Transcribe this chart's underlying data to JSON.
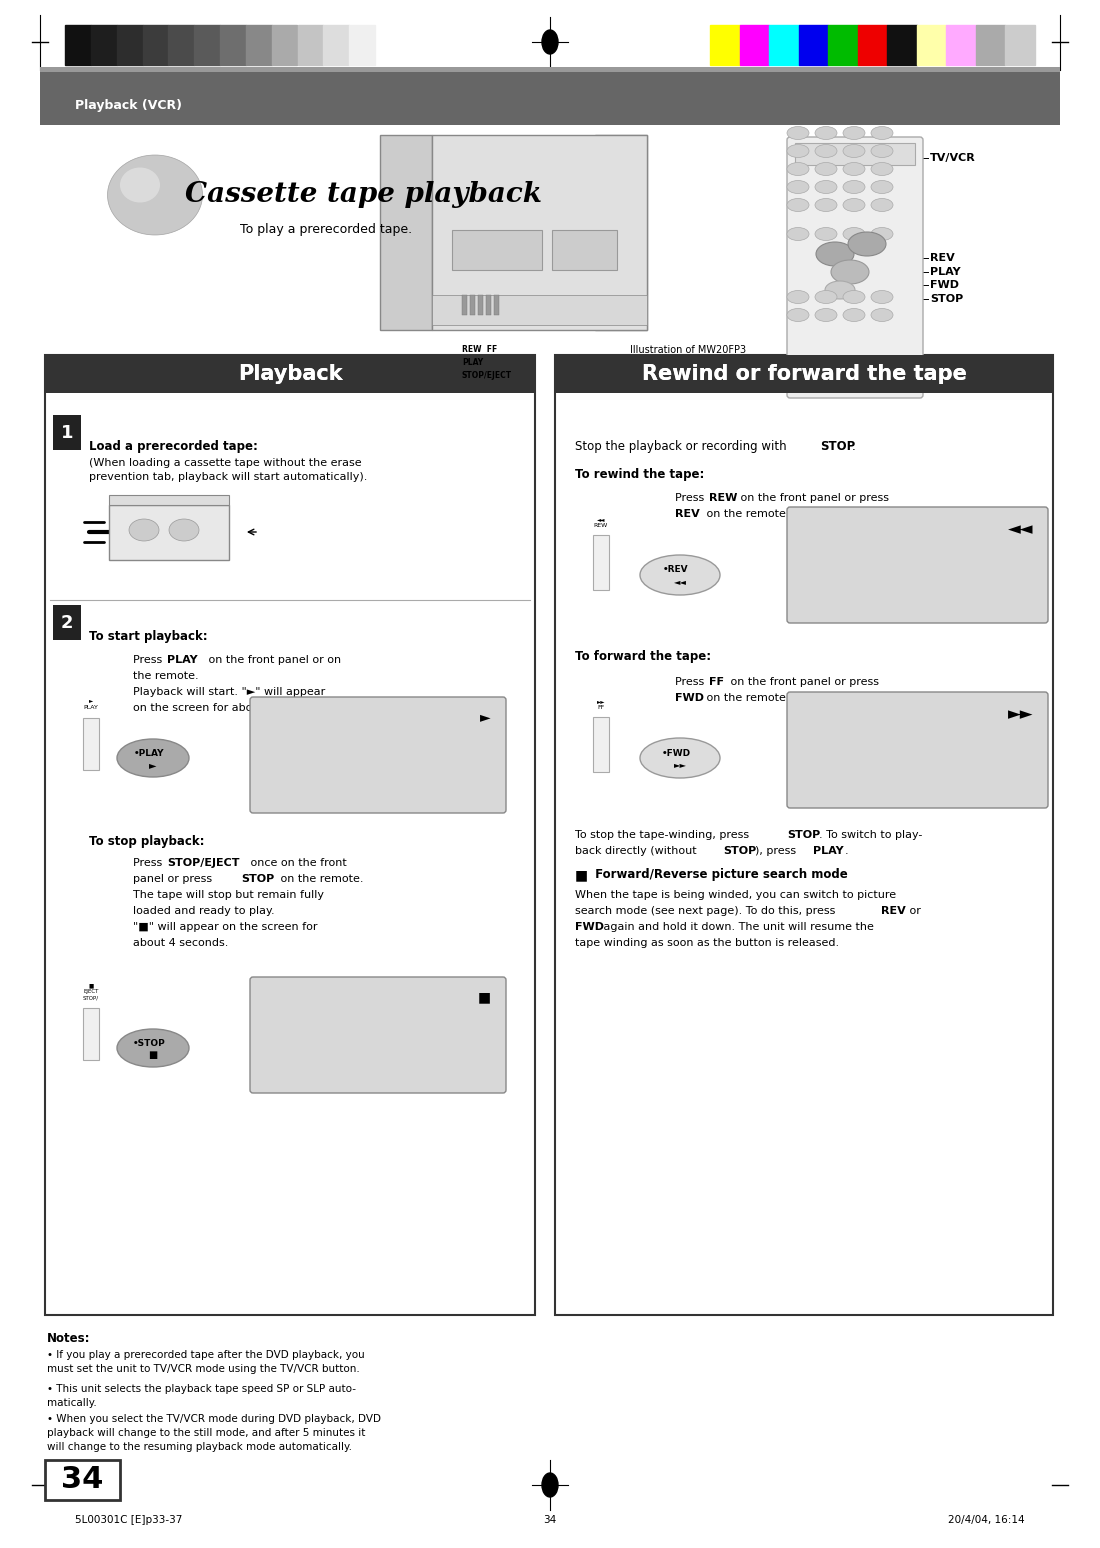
{
  "page_width": 10.8,
  "page_height": 15.28,
  "bg_color": "#ffffff",
  "color_bars_left": [
    "#111111",
    "#1e1e1e",
    "#2d2d2d",
    "#3c3c3c",
    "#4b4b4b",
    "#5a5a5a",
    "#6e6e6e",
    "#888888",
    "#aaaaaa",
    "#c4c4c4",
    "#dddddd",
    "#f0f0f0"
  ],
  "color_bars_right": [
    "#ffff00",
    "#ff00ff",
    "#00ffff",
    "#0000ee",
    "#00bb00",
    "#ee0000",
    "#111111",
    "#ffffaa",
    "#ffaaff",
    "#aaaaaa",
    "#cccccc"
  ],
  "header_text": "Playback (VCR)",
  "title_text": "Cassette tape playback",
  "subtitle_text": "To play a prerecorded tape.",
  "section1_title": "Playback",
  "section2_title": "Rewind or forward the tape",
  "step1_bold": "Load a prerecorded tape:",
  "step1_text": "(When loading a cassette tape without the erase\nprevention tab, playback will start automatically).",
  "step2_bold": "To start playback:",
  "step2_line1": "Press ",
  "step2_bold1": "PLAY",
  "step2_line1b": " on the front panel or on",
  "step2_line2": "the remote.",
  "step2_line3": "Playback will start. \"►\" will appear",
  "step2_line4": "on the screen for about 4 seconds.",
  "stop_bold": "To stop playback:",
  "stop_line1": "Press ",
  "stop_bold1": "STOP/EJECT",
  "stop_line1b": " once on the front",
  "stop_line2": "panel or press ",
  "stop_bold2": "STOP",
  "stop_line2b": " on the remote.",
  "stop_line3": "The tape will stop but remain fully",
  "stop_line4": "loaded and ready to play.",
  "stop_line5": "\"■\" will appear on the screen for",
  "stop_line6": "about 4 seconds.",
  "stop_rewind_text1": "Stop the playback or recording with ",
  "stop_rewind_bold": "STOP",
  "rewind_title": "To rewind the tape:",
  "rewind_line1": "Press ",
  "rewind_bold1": "REW",
  "rewind_line1b": " on the front panel or press",
  "rewind_line2": "",
  "rewind_bold2": "REV",
  "rewind_line2b": " on the remote.",
  "forward_title": "To forward the tape:",
  "forward_line1": "Press ",
  "forward_bold1": "FF",
  "forward_line1b": " on the front panel or press",
  "forward_line2": "",
  "forward_bold2": "FWD",
  "forward_line2b": " on the remote.",
  "wind_stop_line1": "To stop the tape-winding, press ",
  "wind_stop_bold1": "STOP",
  "wind_stop_line1b": ". To switch to play-",
  "wind_stop_line2": "back directly (without ",
  "wind_stop_bold2": "STOP",
  "wind_stop_line2b": "), press ",
  "wind_stop_bold3": "PLAY",
  "wind_stop_line2c": ".",
  "search_title": "Forward/Reverse picture search mode",
  "search_line1": "When the tape is being winded, you can switch to picture",
  "search_line2": "search mode (see next page). To do this, press ",
  "search_bold1": "REV",
  "search_line2b": " or",
  "search_line3": "",
  "search_bold2": "FWD",
  "search_line3b": " again and hold it down. The unit will resume the",
  "search_line4": "tape winding as soon as the button is released.",
  "notes_title": "Notes:",
  "notes_bullet1": "If you play a prerecorded tape after the DVD playback, you\nmust set the unit to TV/VCR mode using the TV/VCR button.",
  "notes_bullet2": "This unit selects the playback tape speed SP or SLP auto-\nmatically.",
  "notes_bullet3": "When you select the TV/VCR mode during DVD playback, DVD\nplayback will change to the still mode, and after 5 minutes it\nwill change to the resuming playback mode automatically.",
  "page_number": "34",
  "footer_left": "5L00301C [E]p33-37",
  "footer_center": "34",
  "footer_right": "20/4/04, 16:14",
  "remote_labels": [
    "TV/VCR",
    "REV",
    "PLAY",
    "FWD",
    "STOP"
  ],
  "illustration_text": "Illustration of MW20FP3",
  "vcr_labels_left": [
    "REW",
    "FF"
  ],
  "vcr_labels_below": [
    "PLAY",
    "STOP/EJECT"
  ]
}
